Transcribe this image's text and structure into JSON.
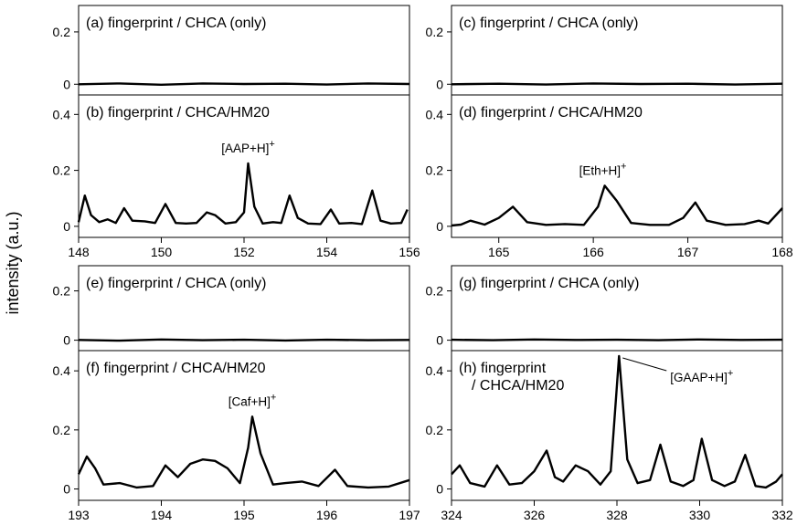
{
  "ylabel": "intensity (a.u.)",
  "chart_data": [
    {
      "type": "line",
      "panel": "left-top",
      "xlim": [
        148,
        156
      ],
      "xticks": [
        148,
        150,
        152,
        154,
        156
      ],
      "top": {
        "label": "(a) fingerprint / CHCA (only)",
        "ylim": [
          -0.02,
          0.28
        ],
        "yticks": [
          0,
          0.2
        ],
        "x": [
          148.0,
          149.0,
          150.0,
          151.0,
          152.0,
          153.0,
          154.0,
          155.0,
          156.0
        ],
        "y": [
          0.0,
          0.003,
          -0.002,
          0.003,
          0.001,
          0.002,
          -0.001,
          0.003,
          0.001
        ]
      },
      "bottom": {
        "label": "(b) fingerprint / CHCA/HM20",
        "ylim": [
          -0.02,
          0.45
        ],
        "yticks": [
          0,
          0.2,
          0.4
        ],
        "x": [
          148.0,
          148.15,
          148.3,
          148.5,
          148.7,
          148.9,
          149.1,
          149.3,
          149.6,
          149.85,
          150.1,
          150.35,
          150.6,
          150.85,
          151.1,
          151.3,
          151.55,
          151.8,
          152.0,
          152.1,
          152.25,
          152.45,
          152.7,
          152.9,
          153.1,
          153.3,
          153.55,
          153.85,
          154.1,
          154.3,
          154.6,
          154.85,
          155.1,
          155.3,
          155.55,
          155.8,
          155.95
        ],
        "y": [
          0.015,
          0.11,
          0.04,
          0.015,
          0.025,
          0.012,
          0.065,
          0.02,
          0.018,
          0.012,
          0.08,
          0.012,
          0.01,
          0.012,
          0.05,
          0.04,
          0.01,
          0.015,
          0.05,
          0.225,
          0.07,
          0.01,
          0.015,
          0.012,
          0.11,
          0.03,
          0.01,
          0.008,
          0.06,
          0.01,
          0.012,
          0.008,
          0.128,
          0.02,
          0.01,
          0.012,
          0.06
        ]
      },
      "annotation": {
        "text": "[AAP+H]",
        "superscript": "+",
        "x": 152.1
      }
    },
    {
      "type": "line",
      "panel": "right-top",
      "xlim": [
        164.5,
        168
      ],
      "xticks": [
        165,
        166,
        167,
        168
      ],
      "top": {
        "label": "(c) fingerprint / CHCA (only)",
        "ylim": [
          -0.02,
          0.28
        ],
        "yticks": [
          0,
          0.2
        ],
        "x": [
          164.5,
          165.0,
          165.5,
          166.0,
          166.5,
          167.0,
          167.5,
          168.0
        ],
        "y": [
          0.0,
          0.002,
          -0.001,
          0.003,
          0.001,
          0.002,
          -0.001,
          0.002
        ]
      },
      "bottom": {
        "label": "(d) fingerprint / CHCA/HM20",
        "ylim": [
          -0.02,
          0.45
        ],
        "yticks": [
          0,
          0.2,
          0.4
        ],
        "x": [
          164.5,
          164.6,
          164.7,
          164.85,
          165.0,
          165.15,
          165.3,
          165.5,
          165.7,
          165.9,
          166.05,
          166.12,
          166.25,
          166.4,
          166.6,
          166.8,
          166.95,
          167.08,
          167.2,
          167.4,
          167.6,
          167.75,
          167.85,
          168.0
        ],
        "y": [
          0.003,
          0.006,
          0.02,
          0.006,
          0.03,
          0.07,
          0.015,
          0.005,
          0.008,
          0.005,
          0.07,
          0.145,
          0.09,
          0.012,
          0.005,
          0.005,
          0.03,
          0.085,
          0.02,
          0.005,
          0.008,
          0.02,
          0.01,
          0.065
        ]
      },
      "annotation": {
        "text": "[Eth+H]",
        "superscript": "+",
        "x": 166.1
      }
    },
    {
      "type": "line",
      "panel": "left-bottom",
      "xlim": [
        193,
        197
      ],
      "xticks": [
        193,
        194,
        195,
        196,
        197
      ],
      "top": {
        "label": "(e) fingerprint / CHCA (only)",
        "ylim": [
          -0.02,
          0.28
        ],
        "yticks": [
          0,
          0.2
        ],
        "x": [
          193.0,
          193.5,
          194.0,
          194.5,
          195.0,
          195.5,
          196.0,
          196.5,
          197.0
        ],
        "y": [
          0.001,
          -0.002,
          0.003,
          0.0,
          0.002,
          -0.001,
          0.002,
          0.0,
          0.001
        ]
      },
      "bottom": {
        "label": "(f) fingerprint / CHCA/HM20",
        "ylim": [
          -0.02,
          0.45
        ],
        "yticks": [
          0,
          0.2,
          0.4
        ],
        "x": [
          193.0,
          193.1,
          193.2,
          193.3,
          193.5,
          193.7,
          193.9,
          194.05,
          194.2,
          194.35,
          194.5,
          194.65,
          194.8,
          194.95,
          195.05,
          195.1,
          195.2,
          195.35,
          195.5,
          195.7,
          195.9,
          196.1,
          196.25,
          196.5,
          196.75,
          197.0
        ],
        "y": [
          0.05,
          0.11,
          0.07,
          0.015,
          0.02,
          0.005,
          0.01,
          0.08,
          0.04,
          0.085,
          0.1,
          0.095,
          0.07,
          0.02,
          0.14,
          0.245,
          0.12,
          0.015,
          0.02,
          0.025,
          0.01,
          0.065,
          0.01,
          0.005,
          0.008,
          0.03
        ]
      },
      "annotation": {
        "text": "[Caf+H]",
        "superscript": "+",
        "x": 195.1
      }
    },
    {
      "type": "line",
      "panel": "right-bottom",
      "xlim": [
        324,
        332
      ],
      "xticks": [
        324,
        326,
        328,
        330,
        332
      ],
      "top": {
        "label": "(g) fingerprint / CHCA (only)",
        "ylim": [
          -0.02,
          0.28
        ],
        "yticks": [
          0,
          0.2
        ],
        "x": [
          324.0,
          325.0,
          326.0,
          327.0,
          328.0,
          329.0,
          330.0,
          331.0,
          332.0
        ],
        "y": [
          0.002,
          0.0,
          0.003,
          0.001,
          0.002,
          0.0,
          0.003,
          0.001,
          0.002
        ]
      },
      "bottom": {
        "label": "(h) fingerprint",
        "label2": "/ CHCA/HM20",
        "ylim": [
          -0.02,
          0.45
        ],
        "yticks": [
          0,
          0.2,
          0.4
        ],
        "x": [
          324.0,
          324.2,
          324.45,
          324.8,
          325.1,
          325.4,
          325.7,
          326.0,
          326.3,
          326.5,
          326.7,
          327.0,
          327.3,
          327.6,
          327.85,
          328.05,
          328.25,
          328.5,
          328.8,
          329.05,
          329.3,
          329.6,
          329.85,
          330.05,
          330.3,
          330.6,
          330.85,
          331.1,
          331.35,
          331.6,
          331.85,
          332.0
        ],
        "y": [
          0.05,
          0.08,
          0.02,
          0.008,
          0.08,
          0.015,
          0.02,
          0.06,
          0.13,
          0.04,
          0.025,
          0.08,
          0.06,
          0.015,
          0.06,
          0.45,
          0.1,
          0.02,
          0.03,
          0.15,
          0.025,
          0.01,
          0.03,
          0.17,
          0.03,
          0.01,
          0.025,
          0.115,
          0.01,
          0.005,
          0.025,
          0.05
        ]
      },
      "annotation": {
        "text": "[GAAP+H]",
        "superscript": "+",
        "x": 328.05
      }
    }
  ]
}
